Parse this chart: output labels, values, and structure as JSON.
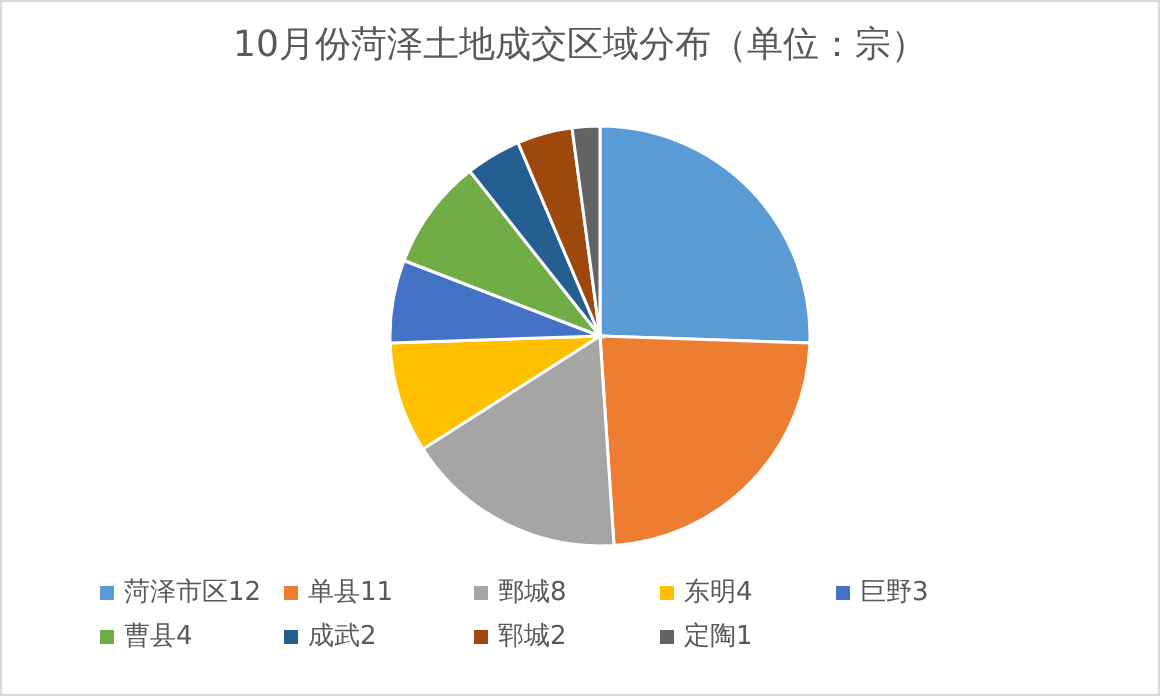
{
  "chart_data": {
    "type": "pie",
    "title": "10月份菏泽土地成交区域分布（单位：宗）",
    "categories": [
      "菏泽市区12",
      "单县11",
      "鄄城8",
      "东明4",
      "巨野3",
      "曹县4",
      "成武2",
      "郓城2",
      "定陶1"
    ],
    "values": [
      12,
      11,
      8,
      4,
      3,
      4,
      2,
      2,
      1
    ],
    "colors": [
      "#5b9bd5",
      "#ed7d31",
      "#a5a5a5",
      "#ffc000",
      "#4472c4",
      "#70ad47",
      "#255e91",
      "#9e480e",
      "#636363"
    ],
    "legend": "bottom"
  }
}
